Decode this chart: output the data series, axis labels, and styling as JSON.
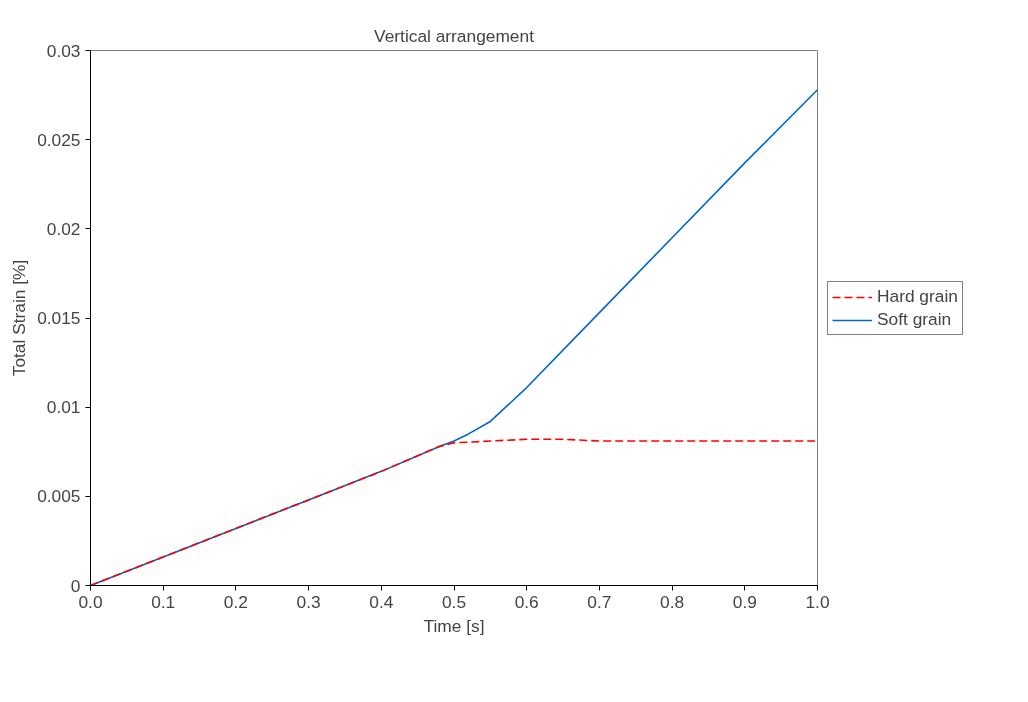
{
  "chart_data": {
    "type": "line",
    "title": "Vertical arrangement",
    "xlabel": "Time [s]",
    "ylabel": "Total Strain [%]",
    "xlim": [
      0,
      1
    ],
    "xticks": [
      {
        "value": 0,
        "label": "0.0"
      },
      0.1,
      0.2,
      0.3,
      0.4,
      0.5,
      0.6,
      0.7,
      0.8,
      0.9,
      {
        "value": 1,
        "label": "1.0"
      }
    ],
    "ylim": [
      0,
      0.03
    ],
    "yticks": [
      0,
      0.005,
      0.01,
      0.015,
      0.02,
      0.025,
      0.03
    ],
    "grid": false,
    "legend": "right",
    "marker": "none",
    "series": [
      {
        "name": "Hard grain",
        "color": "#ff0000",
        "line_style": "dashed",
        "x": [
          0,
          0.1,
          0.2,
          0.3,
          0.4,
          0.48,
          0.5,
          0.55,
          0.6,
          0.65,
          0.7,
          0.8,
          0.9,
          1.0
        ],
        "values": [
          0,
          0.0016,
          0.0032,
          0.0048,
          0.0064,
          0.0078,
          0.008,
          0.0081,
          0.0082,
          0.0082,
          0.0081,
          0.0081,
          0.0081,
          0.0081
        ]
      },
      {
        "name": "Soft grain",
        "color": "#0066cc",
        "line_style": "solid",
        "x": [
          0,
          0.1,
          0.2,
          0.3,
          0.4,
          0.48,
          0.5,
          0.52,
          0.55,
          0.6,
          0.7,
          0.8,
          0.9,
          1.0
        ],
        "values": [
          0,
          0.0016,
          0.0032,
          0.0048,
          0.0064,
          0.0078,
          0.0081,
          0.0085,
          0.0092,
          0.0111,
          0.0153,
          0.0195,
          0.0237,
          0.0278
        ]
      }
    ]
  }
}
